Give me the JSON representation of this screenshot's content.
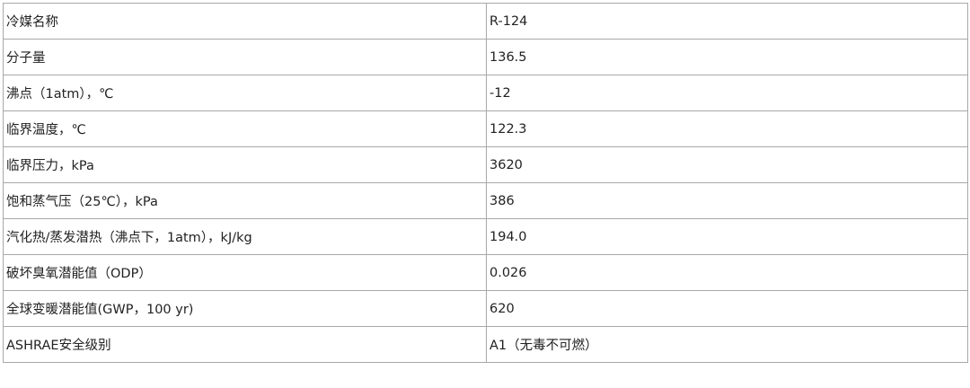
{
  "rows": [
    {
      "label": "冷媒名称",
      "value": "R-124"
    },
    {
      "label": "分子量",
      "value": "136.5"
    },
    {
      "label": "沸点（1atm），℃",
      "value": "-12"
    },
    {
      "label": "临界温度，℃",
      "value": "122.3"
    },
    {
      "label": "临界压力，kPa",
      "value": "3620"
    },
    {
      "label": "饱和蒸气压（25℃），kPa",
      "value": "386"
    },
    {
      "label": "汽化热/蒸发潜热（沸点下，1atm），kJ/kg",
      "value": "194.0"
    },
    {
      "label": "破坏臭氧潜能值（ODP）",
      "value": "0.026"
    },
    {
      "label": "全球变暖潜能值(GWP，100 yr)",
      "value": "620"
    },
    {
      "label": "ASHRAE安全级别",
      "value": "A1（无毒不可燃）"
    }
  ]
}
